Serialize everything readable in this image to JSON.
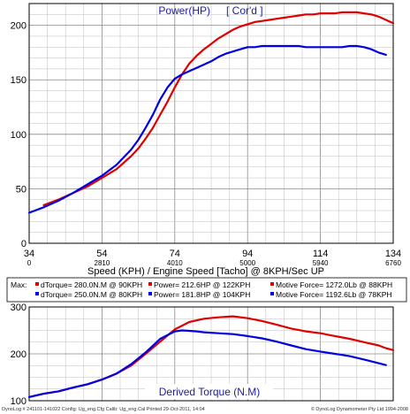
{
  "chart_data": [
    {
      "type": "line",
      "title": "Power(HP)",
      "title_note": "[ Cor'd ]",
      "xlabel": "Speed (KPH) / Engine Speed [Tacho] @ 8KPH/Sec UP",
      "xlim": [
        34,
        134
      ],
      "ylim": [
        0,
        220
      ],
      "x_ticks": [
        "34",
        "54",
        "74",
        "94",
        "114",
        "134"
      ],
      "y_ticks": [
        "0",
        "50",
        "100",
        "150",
        "200"
      ],
      "rpm_ticks": [
        {
          "x": 34,
          "label": "0"
        },
        {
          "x": 54,
          "label": "2810"
        },
        {
          "x": 74,
          "label": "4010"
        },
        {
          "x": 94,
          "label": "5000"
        },
        {
          "x": 114,
          "label": "5940"
        },
        {
          "x": 134,
          "label": "6760"
        }
      ],
      "grid": true,
      "series": [
        {
          "color": "#e00000",
          "x": [
            38,
            42,
            46,
            50,
            54,
            58,
            62,
            64,
            66,
            68,
            70,
            72,
            74,
            76,
            78,
            80,
            82,
            84,
            86,
            88,
            90,
            92,
            94,
            96,
            98,
            100,
            102,
            104,
            106,
            108,
            110,
            112,
            114,
            116,
            118,
            120,
            122,
            124,
            126,
            128,
            130,
            132,
            134
          ],
          "y": [
            35,
            40,
            46,
            52,
            60,
            68,
            80,
            87,
            96,
            106,
            118,
            130,
            143,
            155,
            165,
            172,
            178,
            183,
            188,
            192,
            196,
            199,
            201,
            203,
            204,
            205,
            206,
            207,
            208,
            209,
            210,
            210,
            211,
            211,
            211,
            212,
            212,
            212,
            211,
            210,
            208,
            205,
            202
          ]
        },
        {
          "color": "#0000e0",
          "x": [
            34,
            38,
            42,
            46,
            50,
            54,
            58,
            62,
            64,
            66,
            68,
            70,
            72,
            74,
            76,
            78,
            80,
            82,
            84,
            86,
            88,
            90,
            92,
            94,
            96,
            98,
            100,
            102,
            104,
            106,
            108,
            110,
            112,
            114,
            116,
            118,
            120,
            122,
            124,
            126,
            128,
            130,
            132
          ],
          "y": [
            28,
            33,
            39,
            46,
            54,
            62,
            72,
            86,
            95,
            106,
            118,
            132,
            143,
            151,
            155,
            158,
            161,
            164,
            167,
            171,
            174,
            176,
            178,
            180,
            180,
            181,
            181,
            181,
            181,
            181,
            181,
            180,
            180,
            180,
            180,
            180,
            180,
            181,
            181,
            180,
            178,
            175,
            173
          ]
        }
      ]
    },
    {
      "type": "line",
      "title": "Derived Torque (N.M)",
      "xlim": [
        34,
        134
      ],
      "ylim": [
        100,
        300
      ],
      "y_ticks": [
        "100",
        "200",
        "300"
      ],
      "grid": true,
      "series": [
        {
          "color": "#e00000",
          "x": [
            34,
            38,
            42,
            46,
            50,
            54,
            58,
            62,
            66,
            70,
            74,
            78,
            82,
            86,
            90,
            94,
            98,
            102,
            106,
            110,
            114,
            118,
            122,
            126,
            130,
            132,
            134
          ],
          "y": [
            108,
            115,
            120,
            128,
            135,
            145,
            158,
            175,
            200,
            226,
            252,
            268,
            275,
            278,
            280,
            276,
            270,
            262,
            254,
            248,
            244,
            238,
            232,
            225,
            218,
            212,
            208
          ]
        },
        {
          "color": "#0000e0",
          "x": [
            34,
            38,
            42,
            46,
            50,
            54,
            58,
            62,
            66,
            70,
            74,
            76,
            78,
            80,
            82,
            86,
            90,
            94,
            98,
            102,
            106,
            110,
            114,
            118,
            122,
            126,
            130,
            132
          ],
          "y": [
            108,
            115,
            120,
            128,
            135,
            145,
            158,
            178,
            203,
            232,
            248,
            250,
            249,
            248,
            246,
            244,
            242,
            238,
            233,
            226,
            218,
            210,
            205,
            200,
            195,
            188,
            180,
            176
          ]
        }
      ]
    }
  ],
  "max_table": {
    "header": "Max:",
    "rows": [
      {
        "torque": "dTorque= 280.0N.M @ 90KPH",
        "power": "Power= 212.6HP @ 122KPH",
        "force": "Motive Force= 1272.0Lb @ 88KPH",
        "color": "#e00000"
      },
      {
        "torque": "dTorque= 250.0N.M @ 80KPH",
        "power": "Power= 181.8HP @ 104KPH",
        "force": "Motive Force= 1192.6Lb @ 78KPH",
        "color": "#0000e0"
      }
    ]
  },
  "footer": {
    "left": "DynoLog # 241101-141022  Config: Ug_eng.Cfg  Calib: Ug_eng.Cal  Printed 29-Oct-2011, 14:04",
    "right": "© DynoLog Dynamometer Pty Ltd 1994-2008"
  }
}
